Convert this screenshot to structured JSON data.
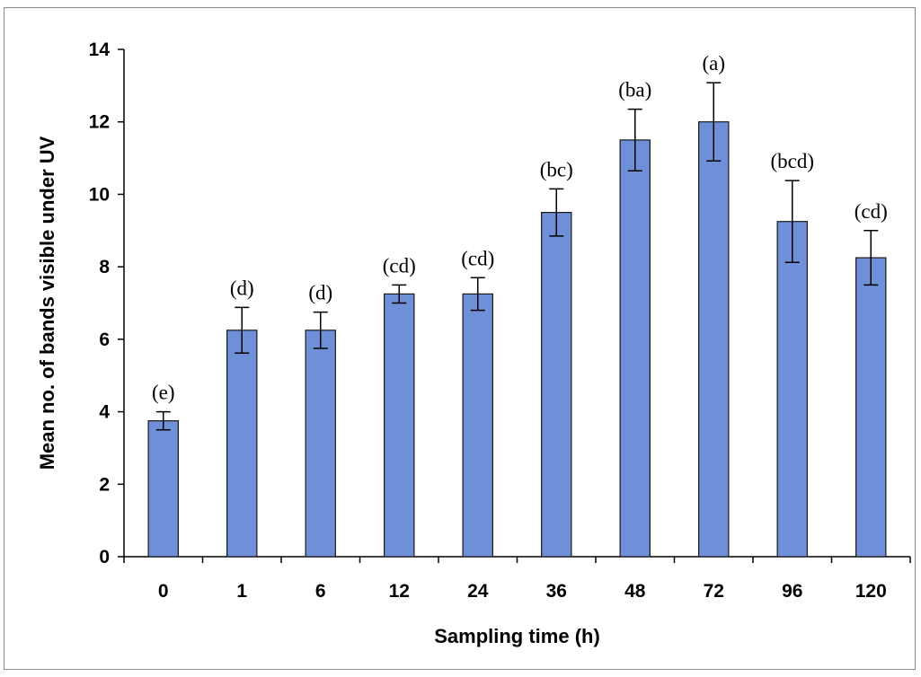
{
  "chart_data": {
    "type": "bar",
    "title": "",
    "xlabel": "Sampling time (h)",
    "ylabel": "Mean no. of bands visible under UV",
    "categories": [
      "0",
      "1",
      "6",
      "12",
      "24",
      "36",
      "48",
      "72",
      "96",
      "120"
    ],
    "values": [
      3.75,
      6.25,
      6.25,
      7.25,
      7.25,
      9.5,
      11.5,
      12.0,
      9.25,
      8.25
    ],
    "errors": [
      0.25,
      0.63,
      0.5,
      0.25,
      0.45,
      0.65,
      0.85,
      1.08,
      1.13,
      0.75
    ],
    "significance_labels": [
      "(e)",
      "(d)",
      "(d)",
      "(cd)",
      "(cd)",
      "(bc)",
      "(ba)",
      "(a)",
      "(bcd)",
      "(cd)"
    ],
    "ylim": [
      0,
      14
    ],
    "yticks": [
      0,
      2,
      4,
      6,
      8,
      10,
      12,
      14
    ],
    "grid": false,
    "legend": "none",
    "colors": {
      "bar_fill": "#6f8fd8",
      "bar_stroke": "#1a1a1a",
      "frame": "#8a8a8a"
    }
  }
}
